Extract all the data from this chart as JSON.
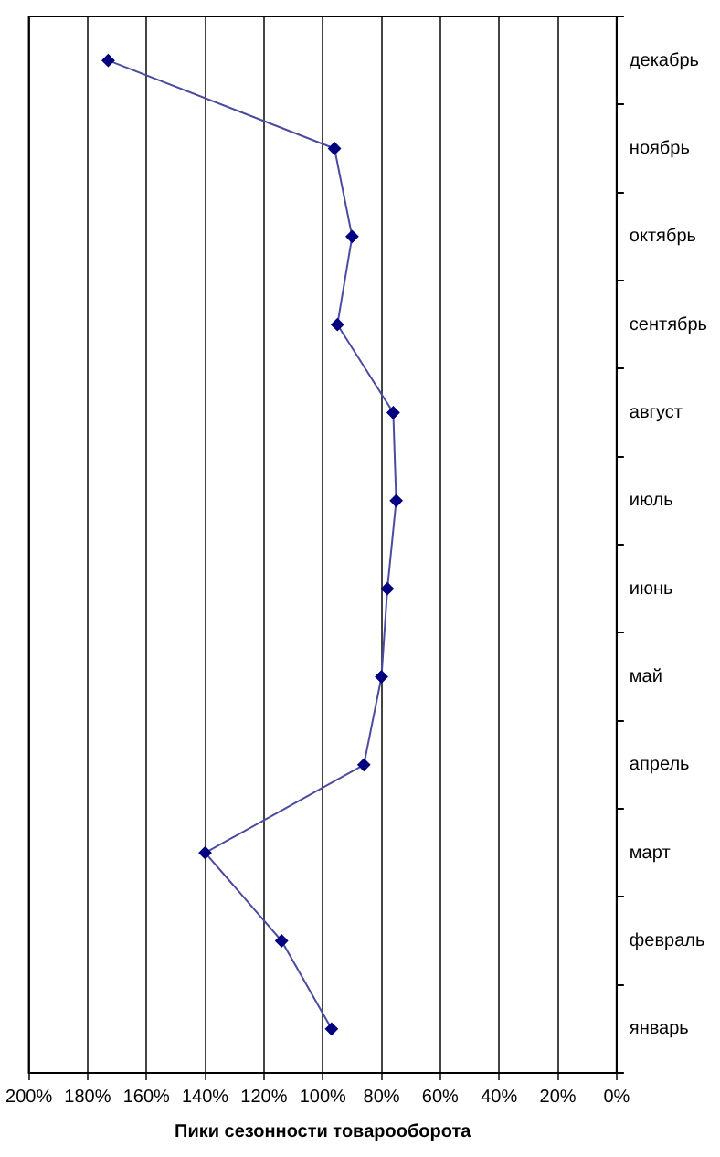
{
  "chart_data": {
    "type": "line",
    "orientation": "horizontal",
    "xlabel": "Пики сезонности товарооборота",
    "categories": [
      "декабрь",
      "ноябрь",
      "октябрь",
      "сентябрь",
      "август",
      "июль",
      "июнь",
      "май",
      "апрель",
      "март",
      "февраль",
      "январь"
    ],
    "series": [
      {
        "color": "#4b4ba0",
        "values": [
          173,
          96,
          90,
          95,
          76,
          75,
          78,
          80,
          86,
          140,
          114,
          97
        ]
      }
    ],
    "xlim": [
      200,
      0
    ],
    "xticks": [
      {
        "value": 200,
        "label": "200%"
      },
      {
        "value": 180,
        "label": "180%"
      },
      {
        "value": 160,
        "label": "160%"
      },
      {
        "value": 140,
        "label": "140%"
      },
      {
        "value": 120,
        "label": "120%"
      },
      {
        "value": 100,
        "label": "100%"
      },
      {
        "value": 80,
        "label": "80%"
      },
      {
        "value": 60,
        "label": "60%"
      },
      {
        "value": 40,
        "label": "40%"
      },
      {
        "value": 20,
        "label": "20%"
      },
      {
        "value": 0,
        "label": "0%"
      }
    ],
    "grid": "x",
    "legend": false,
    "marker": "diamond",
    "line_style": "solid"
  }
}
